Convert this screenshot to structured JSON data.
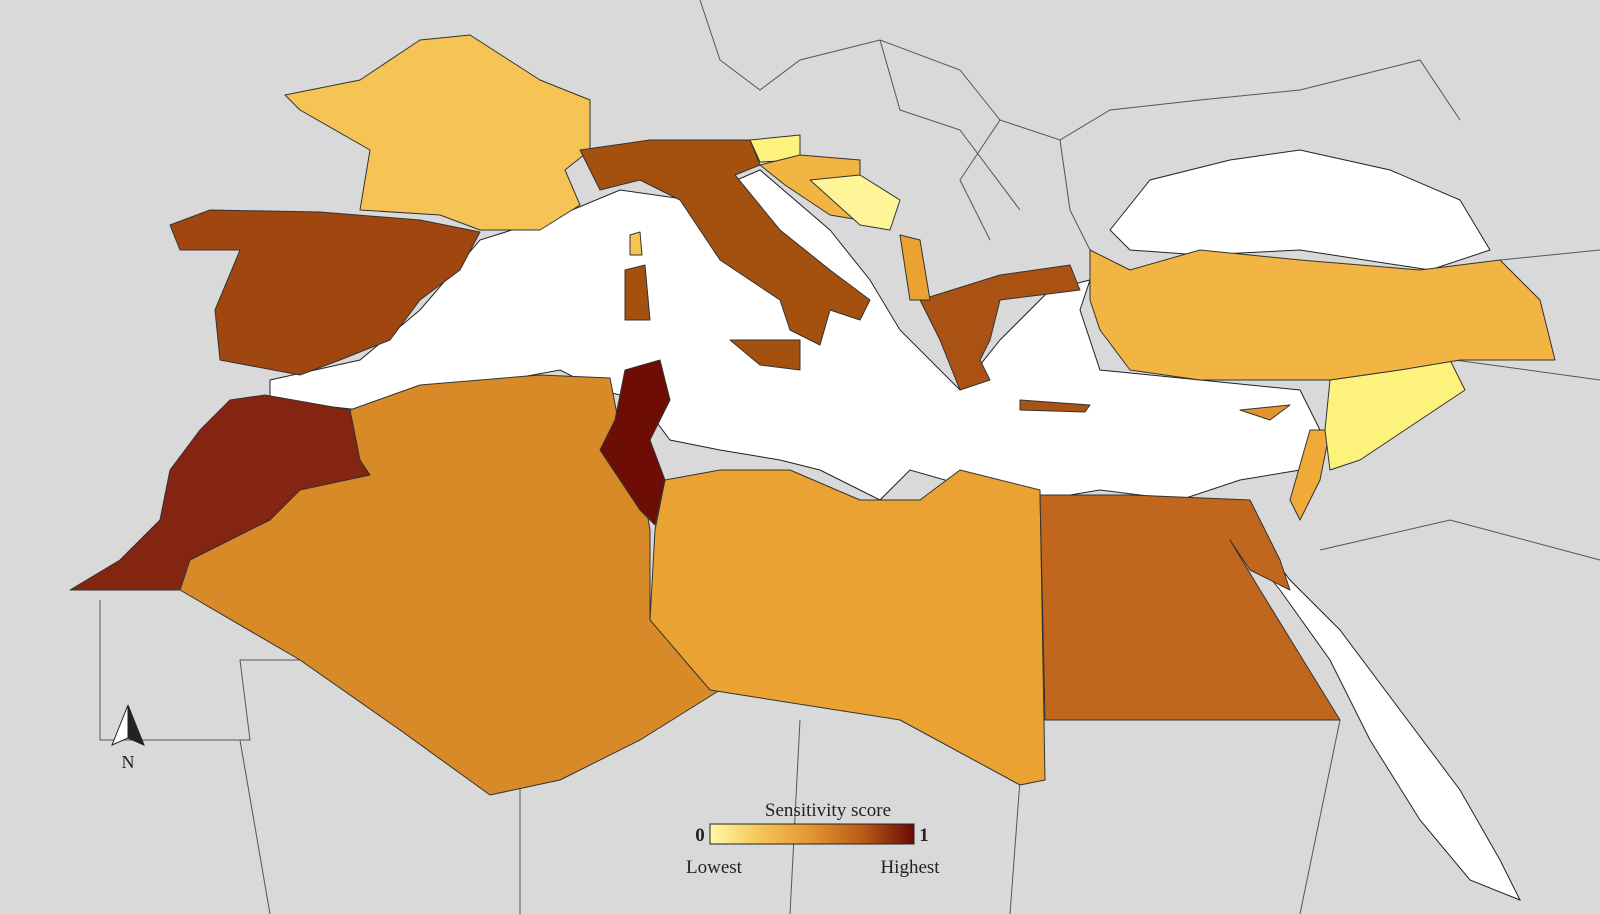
{
  "legend": {
    "title": "Sensitivity score",
    "min": 0,
    "max": 1,
    "low_label": "Lowest",
    "high_label": "Highest",
    "colors": [
      "#fff9a8",
      "#f5c454",
      "#e39430",
      "#b85a18",
      "#6a0a06"
    ]
  },
  "north_arrow": "N"
}
